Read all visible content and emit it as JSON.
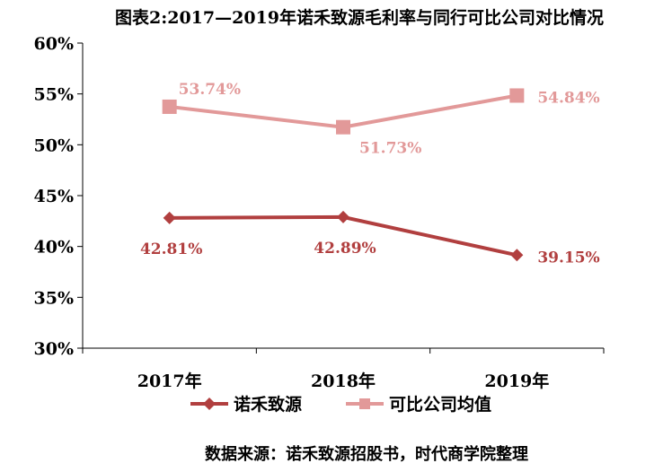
{
  "chart_data": {
    "type": "line",
    "title": "图表2:2017—2019年诺禾致源毛利率与同行可比公司对比情况",
    "categories": [
      "2017年",
      "2018年",
      "2019年"
    ],
    "ylim": [
      30,
      60
    ],
    "yticks": [
      "30%",
      "35%",
      "40%",
      "45%",
      "50%",
      "55%",
      "60%"
    ],
    "ytick_values": [
      30,
      35,
      40,
      45,
      50,
      55,
      60
    ],
    "series": [
      {
        "name": "诺禾致源",
        "values": [
          42.81,
          42.89,
          39.15
        ],
        "labels": [
          "42.81%",
          "42.89%",
          "39.15%"
        ],
        "color": "#b13f3f",
        "marker": "diamond"
      },
      {
        "name": "可比公司均值",
        "values": [
          53.74,
          51.73,
          54.84
        ],
        "labels": [
          "53.74%",
          "51.73%",
          "54.84%"
        ],
        "color": "#e29999",
        "marker": "square"
      }
    ],
    "legend_position": "bottom",
    "grid": false,
    "source": "数据来源：诺禾致源招股书，时代商学院整理"
  }
}
